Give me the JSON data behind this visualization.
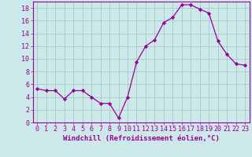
{
  "x": [
    0,
    1,
    2,
    3,
    4,
    5,
    6,
    7,
    8,
    9,
    10,
    11,
    12,
    13,
    14,
    15,
    16,
    17,
    18,
    19,
    20,
    21,
    22,
    23
  ],
  "y": [
    5.3,
    5.0,
    5.0,
    3.7,
    5.0,
    5.0,
    4.0,
    3.0,
    3.0,
    0.7,
    4.0,
    9.5,
    12.0,
    13.0,
    15.7,
    16.5,
    18.5,
    18.5,
    17.8,
    17.2,
    12.8,
    10.7,
    9.2,
    9.0
  ],
  "line_color": "#990099",
  "marker": "D",
  "marker_size": 2.2,
  "bg_color": "#cce8e8",
  "grid_color": "#aacccc",
  "xlabel": "Windchill (Refroidissement éolien,°C)",
  "xlabel_color": "#990099",
  "tick_color": "#990099",
  "ylim": [
    0,
    19
  ],
  "xlim": [
    -0.5,
    23.5
  ],
  "yticks": [
    0,
    2,
    4,
    6,
    8,
    10,
    12,
    14,
    16,
    18
  ],
  "xticks": [
    0,
    1,
    2,
    3,
    4,
    5,
    6,
    7,
    8,
    9,
    10,
    11,
    12,
    13,
    14,
    15,
    16,
    17,
    18,
    19,
    20,
    21,
    22,
    23
  ],
  "spine_color": "#990099",
  "label_fontsize": 6.5,
  "tick_fontsize": 6.0
}
